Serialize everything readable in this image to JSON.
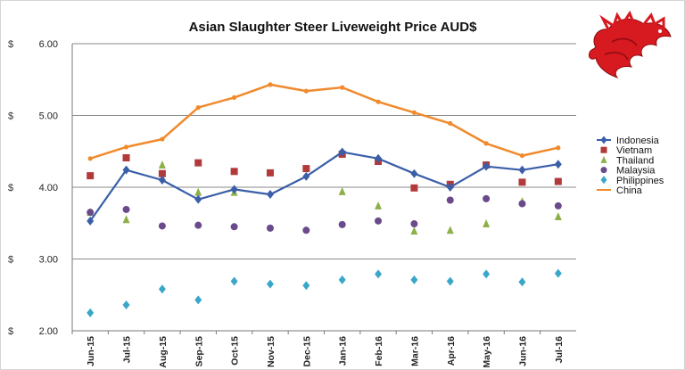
{
  "chart_data": {
    "type": "line",
    "title": "Asian Slaughter Steer Liveweight Price AUD$",
    "y_unit_label": "$",
    "ylim": [
      2.0,
      6.0
    ],
    "y_ticks": [
      "2.00",
      "3.00",
      "4.00",
      "5.00",
      "6.00"
    ],
    "grid": true,
    "legend_position": "right",
    "categories": [
      "Jun-15",
      "Jul-15",
      "Aug-15",
      "Sep-15",
      "Oct-15",
      "Nov-15",
      "Dec-15",
      "Jan-16",
      "Feb-16",
      "Mar-16",
      "Apr-16",
      "May-16",
      "Jun-16",
      "Jul-16"
    ],
    "series": [
      {
        "name": "Indonesia",
        "marker": "diamond",
        "line": true,
        "color": "#3a5ea8",
        "values": [
          3.53,
          4.24,
          4.1,
          3.83,
          3.97,
          3.9,
          4.15,
          4.49,
          4.4,
          4.19,
          4.0,
          4.29,
          4.24,
          4.32
        ]
      },
      {
        "name": "Vietnam",
        "marker": "square",
        "line": false,
        "color": "#b23a3a",
        "values": [
          4.16,
          4.41,
          4.19,
          4.34,
          4.22,
          4.2,
          4.26,
          4.46,
          4.36,
          3.99,
          4.04,
          4.31,
          4.07,
          4.08
        ]
      },
      {
        "name": "Thailand",
        "marker": "triangle",
        "line": false,
        "color": "#8db04a",
        "values": [
          3.65,
          3.55,
          4.31,
          3.93,
          3.93,
          null,
          null,
          3.94,
          3.74,
          3.39,
          3.4,
          3.49,
          3.8,
          3.59
        ]
      },
      {
        "name": "Malaysia",
        "marker": "circle",
        "line": false,
        "color": "#6a4a8c",
        "values": [
          3.65,
          3.69,
          3.46,
          3.47,
          3.45,
          3.43,
          3.4,
          3.48,
          3.53,
          3.49,
          3.82,
          3.84,
          3.77,
          3.74
        ]
      },
      {
        "name": "Philippines",
        "marker": "diamond",
        "line": false,
        "color": "#3aa7c9",
        "values": [
          2.25,
          2.36,
          2.58,
          2.43,
          2.69,
          2.65,
          2.63,
          2.71,
          2.79,
          2.71,
          2.69,
          2.79,
          2.68,
          2.8
        ]
      },
      {
        "name": "China",
        "marker": "circle",
        "line": true,
        "color": "#f08a2c",
        "values": [
          4.4,
          4.56,
          4.67,
          5.11,
          5.25,
          5.43,
          5.34,
          5.39,
          5.19,
          5.04,
          4.89,
          4.61,
          4.44,
          4.55
        ]
      }
    ]
  },
  "colors": {
    "gridline": "#8a8a8a",
    "logo": "#d71920"
  },
  "logo": {
    "icon": "red-dragon-icon"
  }
}
